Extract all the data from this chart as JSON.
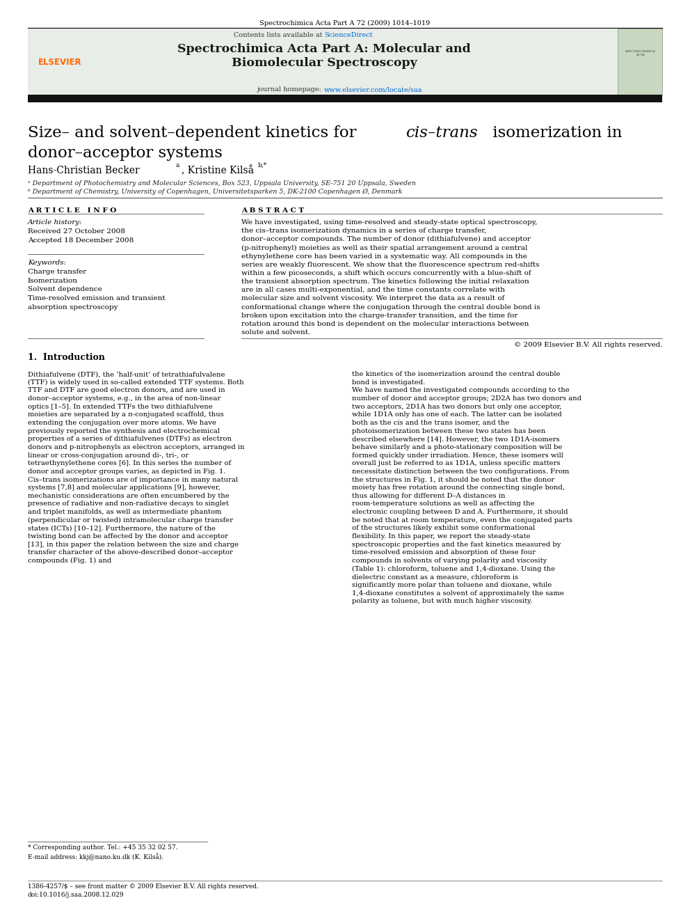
{
  "page_width": 9.92,
  "page_height": 13.23,
  "bg_color": "#ffffff",
  "header_journal": "Spectrochimica Acta Part A 72 (2009) 1014–1019",
  "banner_bg": "#e8ede8",
  "contents_text": "Contents lists available at",
  "sciencedirect_text": "ScienceDirect",
  "sciencedirect_color": "#0066cc",
  "journal_title_line1": "Spectrochimica Acta Part A: Molecular and",
  "journal_title_line2": "Biomolecular Spectroscopy",
  "journal_homepage_text": "journal homepage: ",
  "journal_homepage_url": "www.elsevier.com/locate/saa",
  "journal_homepage_color": "#0066cc",
  "article_title_line1": "Size– and solvent–dependent kinetics for ",
  "article_title_italic": "cis–trans",
  "article_title_line1b": " isomerization in",
  "article_title_line2": "donor–acceptor systems",
  "authors": "Hans-Christian Becker",
  "authors_superscript_a": "a",
  "authors2": ", Kristine Kilså",
  "authors_superscript_b": "b,*",
  "affil_a": "ᵃ Department of Photochemistry and Molecular Sciences, Box 523, Uppsala University, SE-751 20 Uppsala, Sweden",
  "affil_b": "ᵇ Department of Chemistry, University of Copenhagen, Universitetsparken 5, DK-2100 Copenhagen Ø, Denmark",
  "section_article_info": "A R T I C L E   I N F O",
  "section_abstract": "A B S T R A C T",
  "article_history_label": "Article history:",
  "received": "Received 27 October 2008",
  "accepted": "Accepted 18 December 2008",
  "keywords_label": "Keywords:",
  "keyword1": "Charge transfer",
  "keyword2": "Isomerization",
  "keyword3": "Solvent dependence",
  "keyword4": "Time-resolved emission and transient",
  "keyword5": "absorption spectroscopy",
  "abstract_text": "We have investigated, using time-resolved and steady-state optical spectroscopy, the cis–trans isomerization dynamics in a series of charge transfer, donor–acceptor compounds. The number of donor (dithiafulvene) and acceptor (p-nitrophenyl) moieties as well as their spatial arrangement around a central ethynylethene core has been varied in a systematic way. All compounds in the series are weakly fluorescent. We show that the fluorescence spectrum red-shifts within a few picoseconds, a shift which occurs concurrently with a blue-shift of the transient absorption spectrum. The kinetics following the initial relaxation are in all cases multi-exponential, and the time constants correlate with molecular size and solvent viscosity. We interpret the data as a result of conformational change where the conjugation through the central double bond is broken upon excitation into the charge-transfer transition, and the time for rotation around this bond is dependent on the molecular interactions between solute and solvent.",
  "copyright": "© 2009 Elsevier B.V. All rights reserved.",
  "section1_title": "1.  Introduction",
  "intro_col1": "Dithiafulvene (DTF), the ‘half-unit’ of tetrathiafulvalene (TTF) is widely used in so-called extended TTF systems. Both TTF and DTF are good electron donors, and are used in donor–acceptor systems, e.g., in the area of non-linear optics [1–5]. In extended TTFs the two dithiafulvene moieties are separated by a π-conjugated scaffold, thus extending the conjugation over more atoms. We have previously reported the synthesis and electrochemical properties of a series of dithiafulvenes (DTFs) as electron donors and p-nitrophenyls as electron acceptors, arranged in linear or cross-conjugation around di-, tri-, or tetraethynylethene cores [6]. In this series the number of donor and acceptor groups varies, as depicted in Fig. 1.\n    Cis–trans isomerizations are of importance in many natural systems [7,8] and molecular applications [9], however, mechanistic considerations are often encumbered by the presence of radiative and non-radiative decays to singlet and triplet manifolds, as well as intermediate phantom (perpendicular or twisted) intramolecular charge transfer states (ICTs) [10–12]. Furthermore, the nature of the twisting bond can be affected by the donor and acceptor [13], in this paper the relation between the size and charge transfer character of the above-described donor–acceptor compounds (Fig. 1) and",
  "intro_col2": "the kinetics of the isomerization around the central double bond is investigated.\n    We have named the investigated compounds according to the number of donor and acceptor groups; 2D2A has two donors and two acceptors, 2D1A has two donors but only one acceptor, while 1D1A only has one of each. The latter can be isolated both as the cis and the trans isomer, and the photoisomerization between these two states has been described elsewhere [14]. However, the two 1D1A-isomers behave similarly and a photo-stationary composition will be formed quickly under irradiation. Hence, these isomers will overall just be referred to as 1D1A, unless specific matters necessitate distinction between the two configurations. From the structures in Fig. 1, it should be noted that the donor moiety has free rotation around the connecting single bond, thus allowing for different D–A distances in room-temperature solutions as well as affecting the electronic coupling between D and A. Furthermore, it should be noted that at room temperature, even the conjugated parts of the structures likely exhibit some conformational flexibility. In this paper, we report the steady-state spectroscopic properties and the fast kinetics measured by time-resolved emission and absorption of these four compounds in solvents of varying polarity and viscosity (Table 1): chloroform, toluene and 1,4-dioxane. Using the dielectric constant as a measure, chloroform is significantly more polar than toluene and dioxane, while 1,4-dioxane constitutes a solvent of approximately the same polarity as toluene, but with much higher viscosity.",
  "footnote_star": "* Corresponding author. Tel.: +45 35 32 02 57.",
  "footnote_email": "E-mail address: kkj@nano.ku.dk (K. Kilså).",
  "footer_issn": "1386-4257/$ – see front matter © 2009 Elsevier B.V. All rights reserved.",
  "footer_doi": "doi:10.1016/j.saa.2008.12.029"
}
